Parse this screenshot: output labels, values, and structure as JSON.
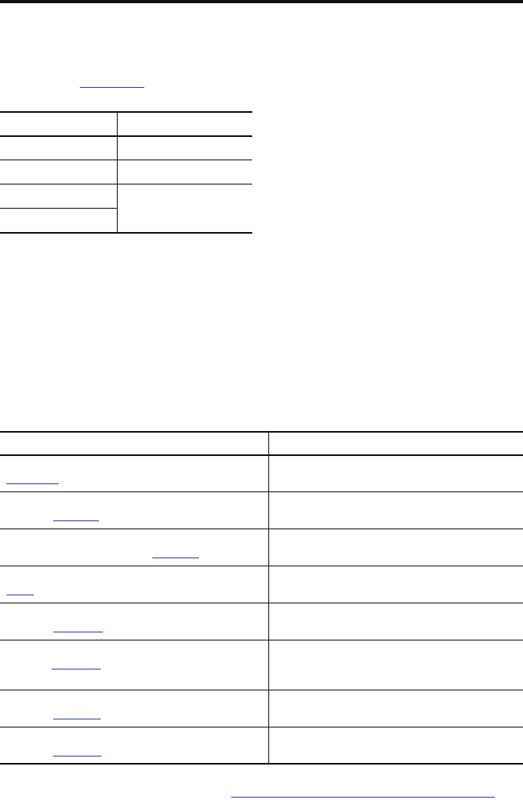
{
  "colors": {
    "rule": "#111111",
    "link_underline": "#2b3fa8",
    "background": "#ffffff"
  }
}
